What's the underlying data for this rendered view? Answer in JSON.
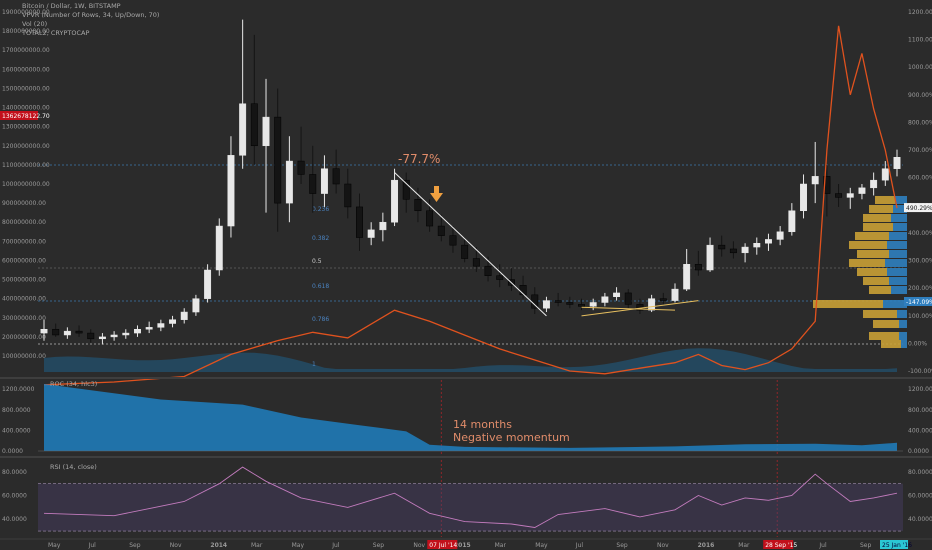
{
  "header": {
    "symbol": "Bitcoin / Dollar, 1W, BITSTAMP",
    "indicator_vpvr": "VPVR (Number Of Rows, 34, Up/Down, 70)",
    "indicator_vol": "Vol (20)",
    "indicator_total2": "TOTAL2, CRYPTOCAP"
  },
  "annotations": {
    "drop_pct": "-77.7%",
    "months": "14 months",
    "momentum": "Negative momentum"
  },
  "colors": {
    "background": "#2b2b2b",
    "candle_up": "#e8e8e8",
    "candle_down": "#141414",
    "total2_line": "#e0521e",
    "volume_area": "#1f5f86",
    "roc_area": "#1f7fc0",
    "rsi_line": "#c27bbd",
    "rsi_band": "#4a3f66",
    "vpvr_up": "#c9a035",
    "vpvr_down": "#2f7fbf",
    "annotation": "#e08c6a",
    "arrow": "#f0a040",
    "trend_white": "#eeeeee",
    "trend_yellow": "#e8c060",
    "highlight_label": "#c2101b",
    "end_label": "#2bc7d4"
  },
  "chart_data": {
    "type": "line",
    "main_price_axis": {
      "ticks": [
        "1900000000.00",
        "1800000000.00",
        "1700000000.00",
        "1600000000.00",
        "1500000000.00",
        "1400000000.00",
        "1300000000.00",
        "1200000000.00",
        "1100000000.00",
        "1000000000.00",
        "900000000.00",
        "800000000.00",
        "700000000.00",
        "600000000.00",
        "500000000.00",
        "400000000.00",
        "300000000.00",
        "200000000.00",
        "100000000.00"
      ],
      "ylim": [
        80000000,
        1980000000
      ],
      "current_label": "1362678122.70"
    },
    "percent_axis": {
      "ticks": [
        "1200.00%",
        "1100.00%",
        "1000.00%",
        "900.00%",
        "800.00%",
        "700.00%",
        "600.00%",
        "500.00%",
        "400.00%",
        "300.00%",
        "200.00%",
        "100.00%",
        "0.00%",
        "-100.00%"
      ],
      "current_label": "490.29%",
      "marker_label": "-147.09%"
    },
    "time_axis": {
      "labels": [
        "May",
        "Jul",
        "Sep",
        "Nov",
        "2014",
        "Mar",
        "May",
        "Jul",
        "Sep",
        "Nov",
        "2015",
        "Mar",
        "May",
        "Jul",
        "Sep",
        "Nov",
        "2016",
        "Mar",
        "May",
        "Jul",
        "Sep"
      ],
      "highlight_labels": [
        "07 Jul '14",
        "28 Sep '15"
      ],
      "end_label": "25 Jan '16"
    },
    "fib_levels": [
      "0.236",
      "0.382",
      "0.5",
      "0.618",
      "0.786",
      "1"
    ],
    "candles": [
      [
        0,
        2.2,
        2.9,
        1.8,
        2.4
      ],
      [
        1,
        2.4,
        2.7,
        2.0,
        2.1
      ],
      [
        2,
        2.1,
        2.5,
        1.9,
        2.3
      ],
      [
        3,
        2.3,
        2.6,
        2.0,
        2.2
      ],
      [
        4,
        2.2,
        2.4,
        1.7,
        1.9
      ],
      [
        5,
        1.9,
        2.2,
        1.6,
        2.0
      ],
      [
        6,
        2.0,
        2.3,
        1.8,
        2.1
      ],
      [
        7,
        2.1,
        2.4,
        1.9,
        2.2
      ],
      [
        8,
        2.2,
        2.6,
        2.0,
        2.4
      ],
      [
        9,
        2.4,
        2.8,
        2.2,
        2.5
      ],
      [
        10,
        2.5,
        2.9,
        2.3,
        2.7
      ],
      [
        11,
        2.7,
        3.1,
        2.5,
        2.9
      ],
      [
        12,
        2.9,
        3.5,
        2.7,
        3.3
      ],
      [
        13,
        3.3,
        4.2,
        3.1,
        4.0
      ],
      [
        14,
        4.0,
        5.8,
        3.8,
        5.5
      ],
      [
        15,
        5.5,
        8.2,
        5.2,
        7.8
      ],
      [
        16,
        7.8,
        12.5,
        7.2,
        11.5
      ],
      [
        17,
        11.5,
        18.6,
        10.8,
        14.2
      ],
      [
        18,
        14.2,
        17.8,
        11.0,
        12.0
      ],
      [
        19,
        12.0,
        15.5,
        8.5,
        13.5
      ],
      [
        20,
        13.5,
        15.0,
        7.5,
        9.0
      ],
      [
        21,
        9.0,
        12.5,
        8.0,
        11.2
      ],
      [
        22,
        11.2,
        13.0,
        10.0,
        10.5
      ],
      [
        23,
        10.5,
        12.0,
        8.5,
        9.5
      ],
      [
        24,
        9.5,
        11.5,
        8.8,
        10.8
      ],
      [
        25,
        10.8,
        11.8,
        9.5,
        10.0
      ],
      [
        26,
        10.0,
        10.8,
        8.2,
        8.8
      ],
      [
        27,
        8.8,
        9.5,
        6.5,
        7.2
      ],
      [
        28,
        7.2,
        8.0,
        6.8,
        7.6
      ],
      [
        29,
        7.6,
        8.5,
        7.0,
        8.0
      ],
      [
        30,
        8.0,
        10.8,
        7.8,
        10.2
      ],
      [
        31,
        10.2,
        10.6,
        8.5,
        9.2
      ],
      [
        32,
        9.2,
        9.8,
        8.0,
        8.6
      ],
      [
        33,
        8.6,
        9.2,
        7.5,
        7.8
      ],
      [
        34,
        7.8,
        8.4,
        7.0,
        7.3
      ],
      [
        35,
        7.3,
        7.8,
        6.4,
        6.8
      ],
      [
        36,
        6.8,
        7.2,
        5.9,
        6.1
      ],
      [
        37,
        6.1,
        6.7,
        5.4,
        5.7
      ],
      [
        38,
        5.7,
        6.2,
        4.9,
        5.2
      ],
      [
        39,
        5.2,
        5.8,
        4.6,
        5.0
      ],
      [
        40,
        5.0,
        5.6,
        4.4,
        4.7
      ],
      [
        41,
        4.7,
        5.2,
        4.0,
        4.2
      ],
      [
        42,
        4.2,
        4.6,
        3.2,
        3.5
      ],
      [
        43,
        3.5,
        4.1,
        3.3,
        3.9
      ],
      [
        44,
        3.9,
        4.3,
        3.6,
        3.8
      ],
      [
        45,
        3.8,
        4.1,
        3.5,
        3.7
      ],
      [
        46,
        3.7,
        4.0,
        3.4,
        3.6
      ],
      [
        47,
        3.6,
        4.0,
        3.4,
        3.8
      ],
      [
        48,
        3.8,
        4.3,
        3.6,
        4.1
      ],
      [
        49,
        4.1,
        4.6,
        3.9,
        4.3
      ],
      [
        50,
        4.3,
        4.5,
        3.5,
        3.7
      ],
      [
        51,
        3.7,
        4.0,
        3.2,
        3.4
      ],
      [
        52,
        3.4,
        4.2,
        3.3,
        4.0
      ],
      [
        53,
        4.0,
        4.3,
        3.7,
        3.9
      ],
      [
        54,
        3.9,
        4.8,
        3.8,
        4.5
      ],
      [
        55,
        4.5,
        6.6,
        4.4,
        5.8
      ],
      [
        56,
        5.8,
        6.5,
        5.2,
        5.5
      ],
      [
        57,
        5.5,
        7.2,
        5.4,
        6.8
      ],
      [
        58,
        6.8,
        7.3,
        6.2,
        6.6
      ],
      [
        59,
        6.6,
        7.0,
        6.1,
        6.4
      ],
      [
        60,
        6.4,
        6.9,
        5.9,
        6.7
      ],
      [
        61,
        6.7,
        7.2,
        6.3,
        6.9
      ],
      [
        62,
        6.9,
        7.4,
        6.5,
        7.1
      ],
      [
        63,
        7.1,
        7.8,
        6.8,
        7.5
      ],
      [
        64,
        7.5,
        9.0,
        7.3,
        8.6
      ],
      [
        65,
        8.6,
        10.5,
        8.2,
        10.0
      ],
      [
        66,
        10.0,
        12.2,
        9.0,
        10.4
      ],
      [
        67,
        10.4,
        11.0,
        8.3,
        9.5
      ],
      [
        68,
        9.5,
        10.0,
        8.8,
        9.3
      ],
      [
        69,
        9.3,
        9.8,
        8.7,
        9.5
      ],
      [
        70,
        9.5,
        10.0,
        9.2,
        9.8
      ],
      [
        71,
        9.8,
        10.6,
        9.4,
        10.2
      ],
      [
        72,
        10.2,
        11.2,
        9.9,
        10.8
      ],
      [
        73,
        10.8,
        11.8,
        10.4,
        11.4
      ]
    ],
    "total2_pct": [
      [
        0,
        -150
      ],
      [
        6,
        -140
      ],
      [
        12,
        -120
      ],
      [
        16,
        -40
      ],
      [
        20,
        10
      ],
      [
        23,
        40
      ],
      [
        26,
        20
      ],
      [
        30,
        120
      ],
      [
        33,
        80
      ],
      [
        36,
        30
      ],
      [
        39,
        -20
      ],
      [
        42,
        -60
      ],
      [
        45,
        -100
      ],
      [
        48,
        -110
      ],
      [
        51,
        -90
      ],
      [
        54,
        -70
      ],
      [
        56,
        -40
      ],
      [
        58,
        -80
      ],
      [
        60,
        -95
      ],
      [
        62,
        -70
      ],
      [
        64,
        -20
      ],
      [
        66,
        80
      ],
      [
        67,
        700
      ],
      [
        68,
        1150
      ],
      [
        69,
        900
      ],
      [
        70,
        1050
      ],
      [
        71,
        850
      ],
      [
        72,
        700
      ],
      [
        73,
        490
      ]
    ],
    "roc": [
      [
        0,
        1300
      ],
      [
        10,
        1000
      ],
      [
        17,
        900
      ],
      [
        22,
        650
      ],
      [
        27,
        500
      ],
      [
        31,
        380
      ],
      [
        33,
        120
      ],
      [
        36,
        80
      ],
      [
        45,
        60
      ],
      [
        54,
        90
      ],
      [
        60,
        130
      ],
      [
        66,
        140
      ],
      [
        70,
        110
      ],
      [
        73,
        160
      ]
    ],
    "rsi": [
      [
        0,
        45
      ],
      [
        6,
        43
      ],
      [
        12,
        55
      ],
      [
        15,
        70
      ],
      [
        17,
        84
      ],
      [
        19,
        72
      ],
      [
        22,
        58
      ],
      [
        26,
        50
      ],
      [
        30,
        62
      ],
      [
        33,
        45
      ],
      [
        36,
        38
      ],
      [
        40,
        36
      ],
      [
        42,
        33
      ],
      [
        44,
        44
      ],
      [
        48,
        49
      ],
      [
        51,
        42
      ],
      [
        54,
        48
      ],
      [
        56,
        60
      ],
      [
        58,
        52
      ],
      [
        60,
        58
      ],
      [
        62,
        56
      ],
      [
        64,
        60
      ],
      [
        66,
        78
      ],
      [
        67,
        70
      ],
      [
        69,
        55
      ],
      [
        71,
        58
      ],
      [
        73,
        62
      ]
    ],
    "roc_axis": [
      "1200.0000",
      "800.0000",
      "400.0000",
      "0.0000"
    ],
    "rsi_axis": [
      "80.0000",
      "60.0000",
      "40.0000"
    ],
    "roc_title": "ROC (34, hlc3)",
    "rsi_title": "RSI (14, close)"
  }
}
